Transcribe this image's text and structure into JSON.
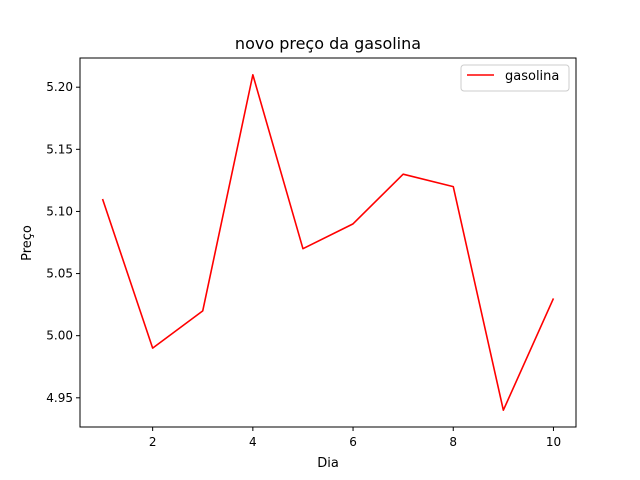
{
  "chart_data": {
    "type": "line",
    "title": "novo preço da gasolina",
    "xlabel": "Dia",
    "ylabel": "Preço",
    "x": [
      1,
      2,
      3,
      4,
      5,
      6,
      7,
      8,
      9,
      10
    ],
    "series": [
      {
        "name": "gasolina",
        "color": "#ff0000",
        "values": [
          5.11,
          4.99,
          5.02,
          5.21,
          5.07,
          5.09,
          5.13,
          5.12,
          4.94,
          5.03
        ]
      }
    ],
    "xlim": [
      0.55,
      10.45
    ],
    "ylim": [
      4.9265,
      5.2235
    ],
    "xticks": [
      2,
      4,
      6,
      8,
      10
    ],
    "xtick_labels": [
      "2",
      "4",
      "6",
      "8",
      "10"
    ],
    "yticks": [
      4.95,
      5.0,
      5.05,
      5.1,
      5.15,
      5.2
    ],
    "ytick_labels": [
      "4.95",
      "5.00",
      "5.05",
      "5.10",
      "5.15",
      "5.20"
    ],
    "grid": false,
    "legend_position": "upper right"
  }
}
